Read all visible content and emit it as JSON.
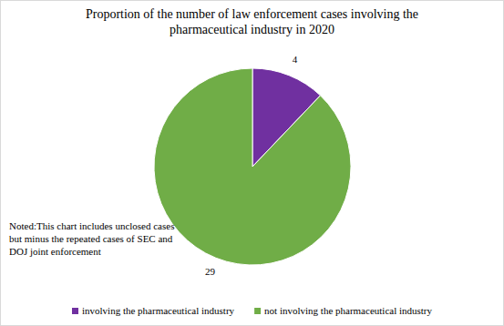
{
  "chart_data": {
    "type": "pie",
    "title": "Proportion of the number of law enforcement cases involving  the pharmaceutical industry in 2020",
    "note": "Noted:This chart includes unclosed cases but minus the repeated cases of SEC and DOJ joint enforcement",
    "categories": [
      "involving the pharmaceutical industry",
      "not involving the pharmaceutical industry"
    ],
    "values": [
      4,
      29
    ],
    "colors": [
      "#7030a0",
      "#70ad47"
    ],
    "data_labels": true,
    "legend": "bottom"
  }
}
